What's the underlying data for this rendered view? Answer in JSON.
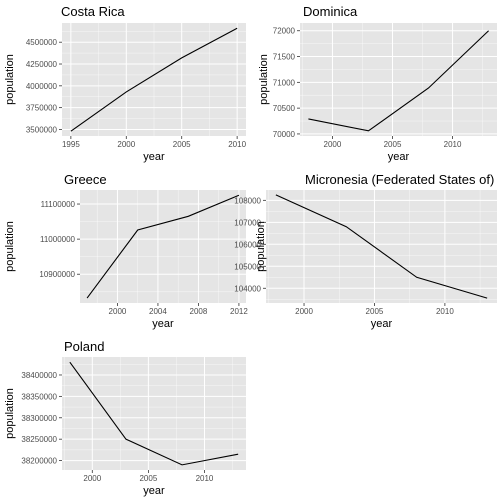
{
  "chart_data": [
    {
      "type": "line",
      "title": "Costa Rica",
      "xlabel": "year",
      "ylabel": "population",
      "x": [
        1995,
        2000,
        2005,
        2010
      ],
      "y": [
        3480000,
        3930000,
        4320000,
        4660000
      ],
      "xlim": [
        1994.2,
        2010.8
      ],
      "ylim": [
        3425000,
        4720000
      ],
      "xticks": [
        "1995",
        "2000",
        "2005",
        "2010"
      ],
      "yticks": [
        "3500000",
        "3750000",
        "4000000",
        "4250000",
        "4500000"
      ],
      "grid": true,
      "line_color": "#000000"
    },
    {
      "type": "line",
      "title": "Dominica",
      "xlabel": "year",
      "ylabel": "population",
      "x": [
        1998,
        2003,
        2008,
        2013
      ],
      "y": [
        70290,
        70060,
        70890,
        72000
      ],
      "xlim": [
        1997.3,
        2013.7
      ],
      "ylim": [
        69960,
        72150
      ],
      "xticks": [
        "2000",
        "2005",
        "2010"
      ],
      "yticks": [
        "70000",
        "70500",
        "71000",
        "71500",
        "72000"
      ],
      "grid": true,
      "line_color": "#000000"
    },
    {
      "type": "line",
      "title": "Greece",
      "xlabel": "year",
      "ylabel": "population",
      "x": [
        1997,
        2002,
        2007,
        2012
      ],
      "y": [
        10832000,
        11026000,
        11065000,
        11125000
      ],
      "xlim": [
        1996.3,
        2012.7
      ],
      "ylim": [
        10818000,
        11140000
      ],
      "xticks": [
        "2000",
        "2004",
        "2008",
        "2012"
      ],
      "yticks": [
        "10900000",
        "11000000",
        "11100000"
      ],
      "grid": true,
      "line_color": "#000000"
    },
    {
      "type": "line",
      "title": "Micronesia (Federated States of)",
      "xlabel": "year",
      "ylabel": "population",
      "x": [
        1998,
        2003,
        2008,
        2013
      ],
      "y": [
        108250,
        106800,
        104500,
        103550
      ],
      "xlim": [
        1997.3,
        2013.7
      ],
      "ylim": [
        103330,
        108470
      ],
      "xticks": [
        "2000",
        "2005",
        "2010"
      ],
      "yticks": [
        "104000",
        "105000",
        "106000",
        "107000",
        "108000"
      ],
      "grid": true,
      "line_color": "#000000"
    },
    {
      "type": "line",
      "title": "Poland",
      "xlabel": "year",
      "ylabel": "population",
      "x": [
        1998,
        2003,
        2008,
        2013
      ],
      "y": [
        38430000,
        38250000,
        38190000,
        38215000
      ],
      "xlim": [
        1997.3,
        2013.7
      ],
      "ylim": [
        38178000,
        38442000
      ],
      "xticks": [
        "2000",
        "2005",
        "2010"
      ],
      "yticks": [
        "38200000",
        "38250000",
        "38300000",
        "38350000",
        "38400000"
      ],
      "grid": true,
      "line_color": "#000000"
    }
  ],
  "colors": {
    "panel_background": "#e5e5e5",
    "grid_major": "#ffffff",
    "tick_text": "#4d4d4d",
    "text": "#000000"
  }
}
